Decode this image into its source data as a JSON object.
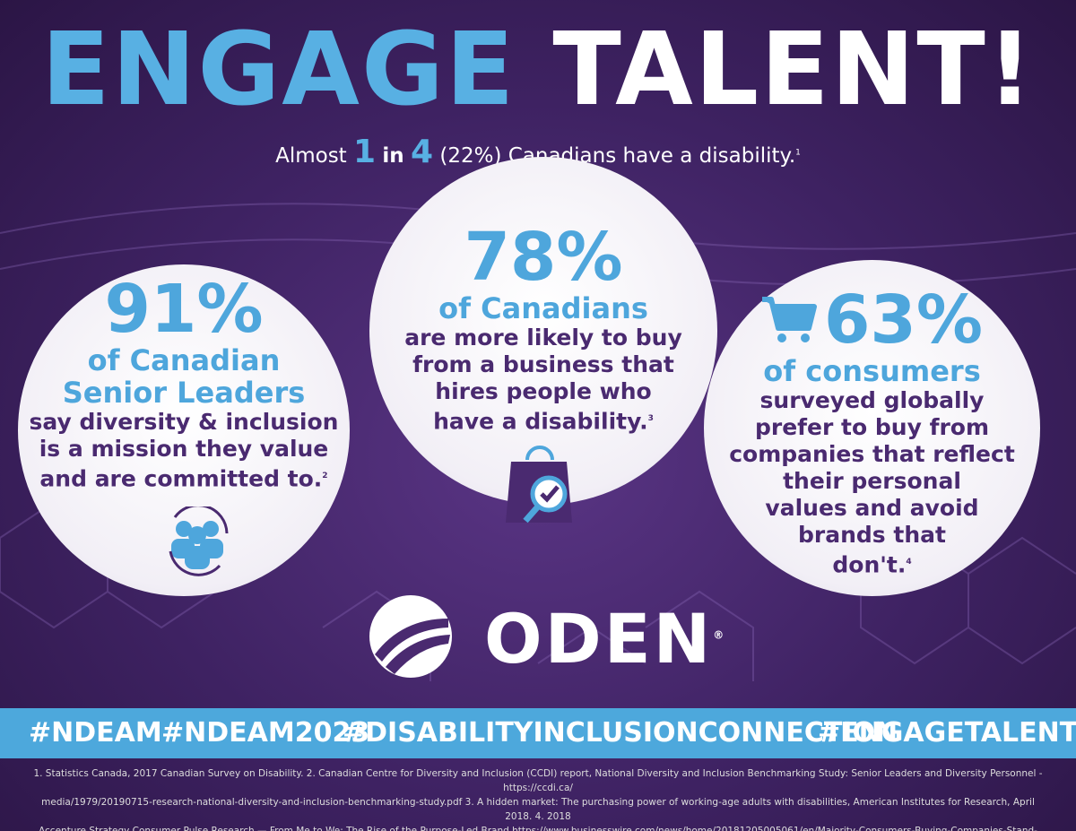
{
  "header": {
    "title_blue": "ENGAGE",
    "title_white": "TALENT!",
    "subtitle": {
      "prefix": "Almost",
      "n1": "1",
      "mid": "in",
      "n2": "4",
      "rest": "(22%) Canadians have a disability.",
      "note": "1"
    }
  },
  "stats": [
    {
      "value": "91%",
      "subject_lines": [
        "of Canadian",
        "Senior Leaders"
      ],
      "text_lines": [
        "say diversity & inclusion",
        "is a mission they value",
        "and are committed to."
      ],
      "note": "2"
    },
    {
      "value": "78%",
      "subject_lines": [
        "of Canadians"
      ],
      "text_lines": [
        "are more likely to buy",
        "from a business that",
        "hires people who",
        "have a disability."
      ],
      "note": "3"
    },
    {
      "value": "63%",
      "subject_lines": [
        "of consumers"
      ],
      "text_lines": [
        "surveyed globally",
        "prefer to buy from",
        "companies that reflect",
        "their personal",
        "values and avoid",
        "brands that",
        "don't."
      ],
      "note": "4"
    }
  ],
  "logo": {
    "name": "ODEN",
    "mark": "®"
  },
  "hashtags": [
    "#NDEAM",
    "#NDEAM2023",
    "#DISABILITYINCLUSIONCONNECTION",
    "#ENGAGETALENT"
  ],
  "footnotes": [
    "1. Statistics Canada, 2017 Canadian Survey on Disability.  2. Canadian Centre for Diversity and Inclusion (CCDI) report, National Diversity and Inclusion Benchmarking Study: Senior Leaders and Diversity Personnel - https://ccdi.ca/",
    "media/1979/20190715-research-national-diversity-and-inclusion-benchmarking-study.pdf  3. A hidden market: The purchasing power of working-age adults with disabilities, American Institutes for Research, April 2018. 4. 2018",
    "Accenture Strategy Consumer Pulse Research — From Me to We: The Rise of the Purpose-Led Brand https://www.businesswire.com/news/home/20181205005061/en/Majority-Consumers-Buying-Companies-Stand-Issues-Care"
  ]
}
